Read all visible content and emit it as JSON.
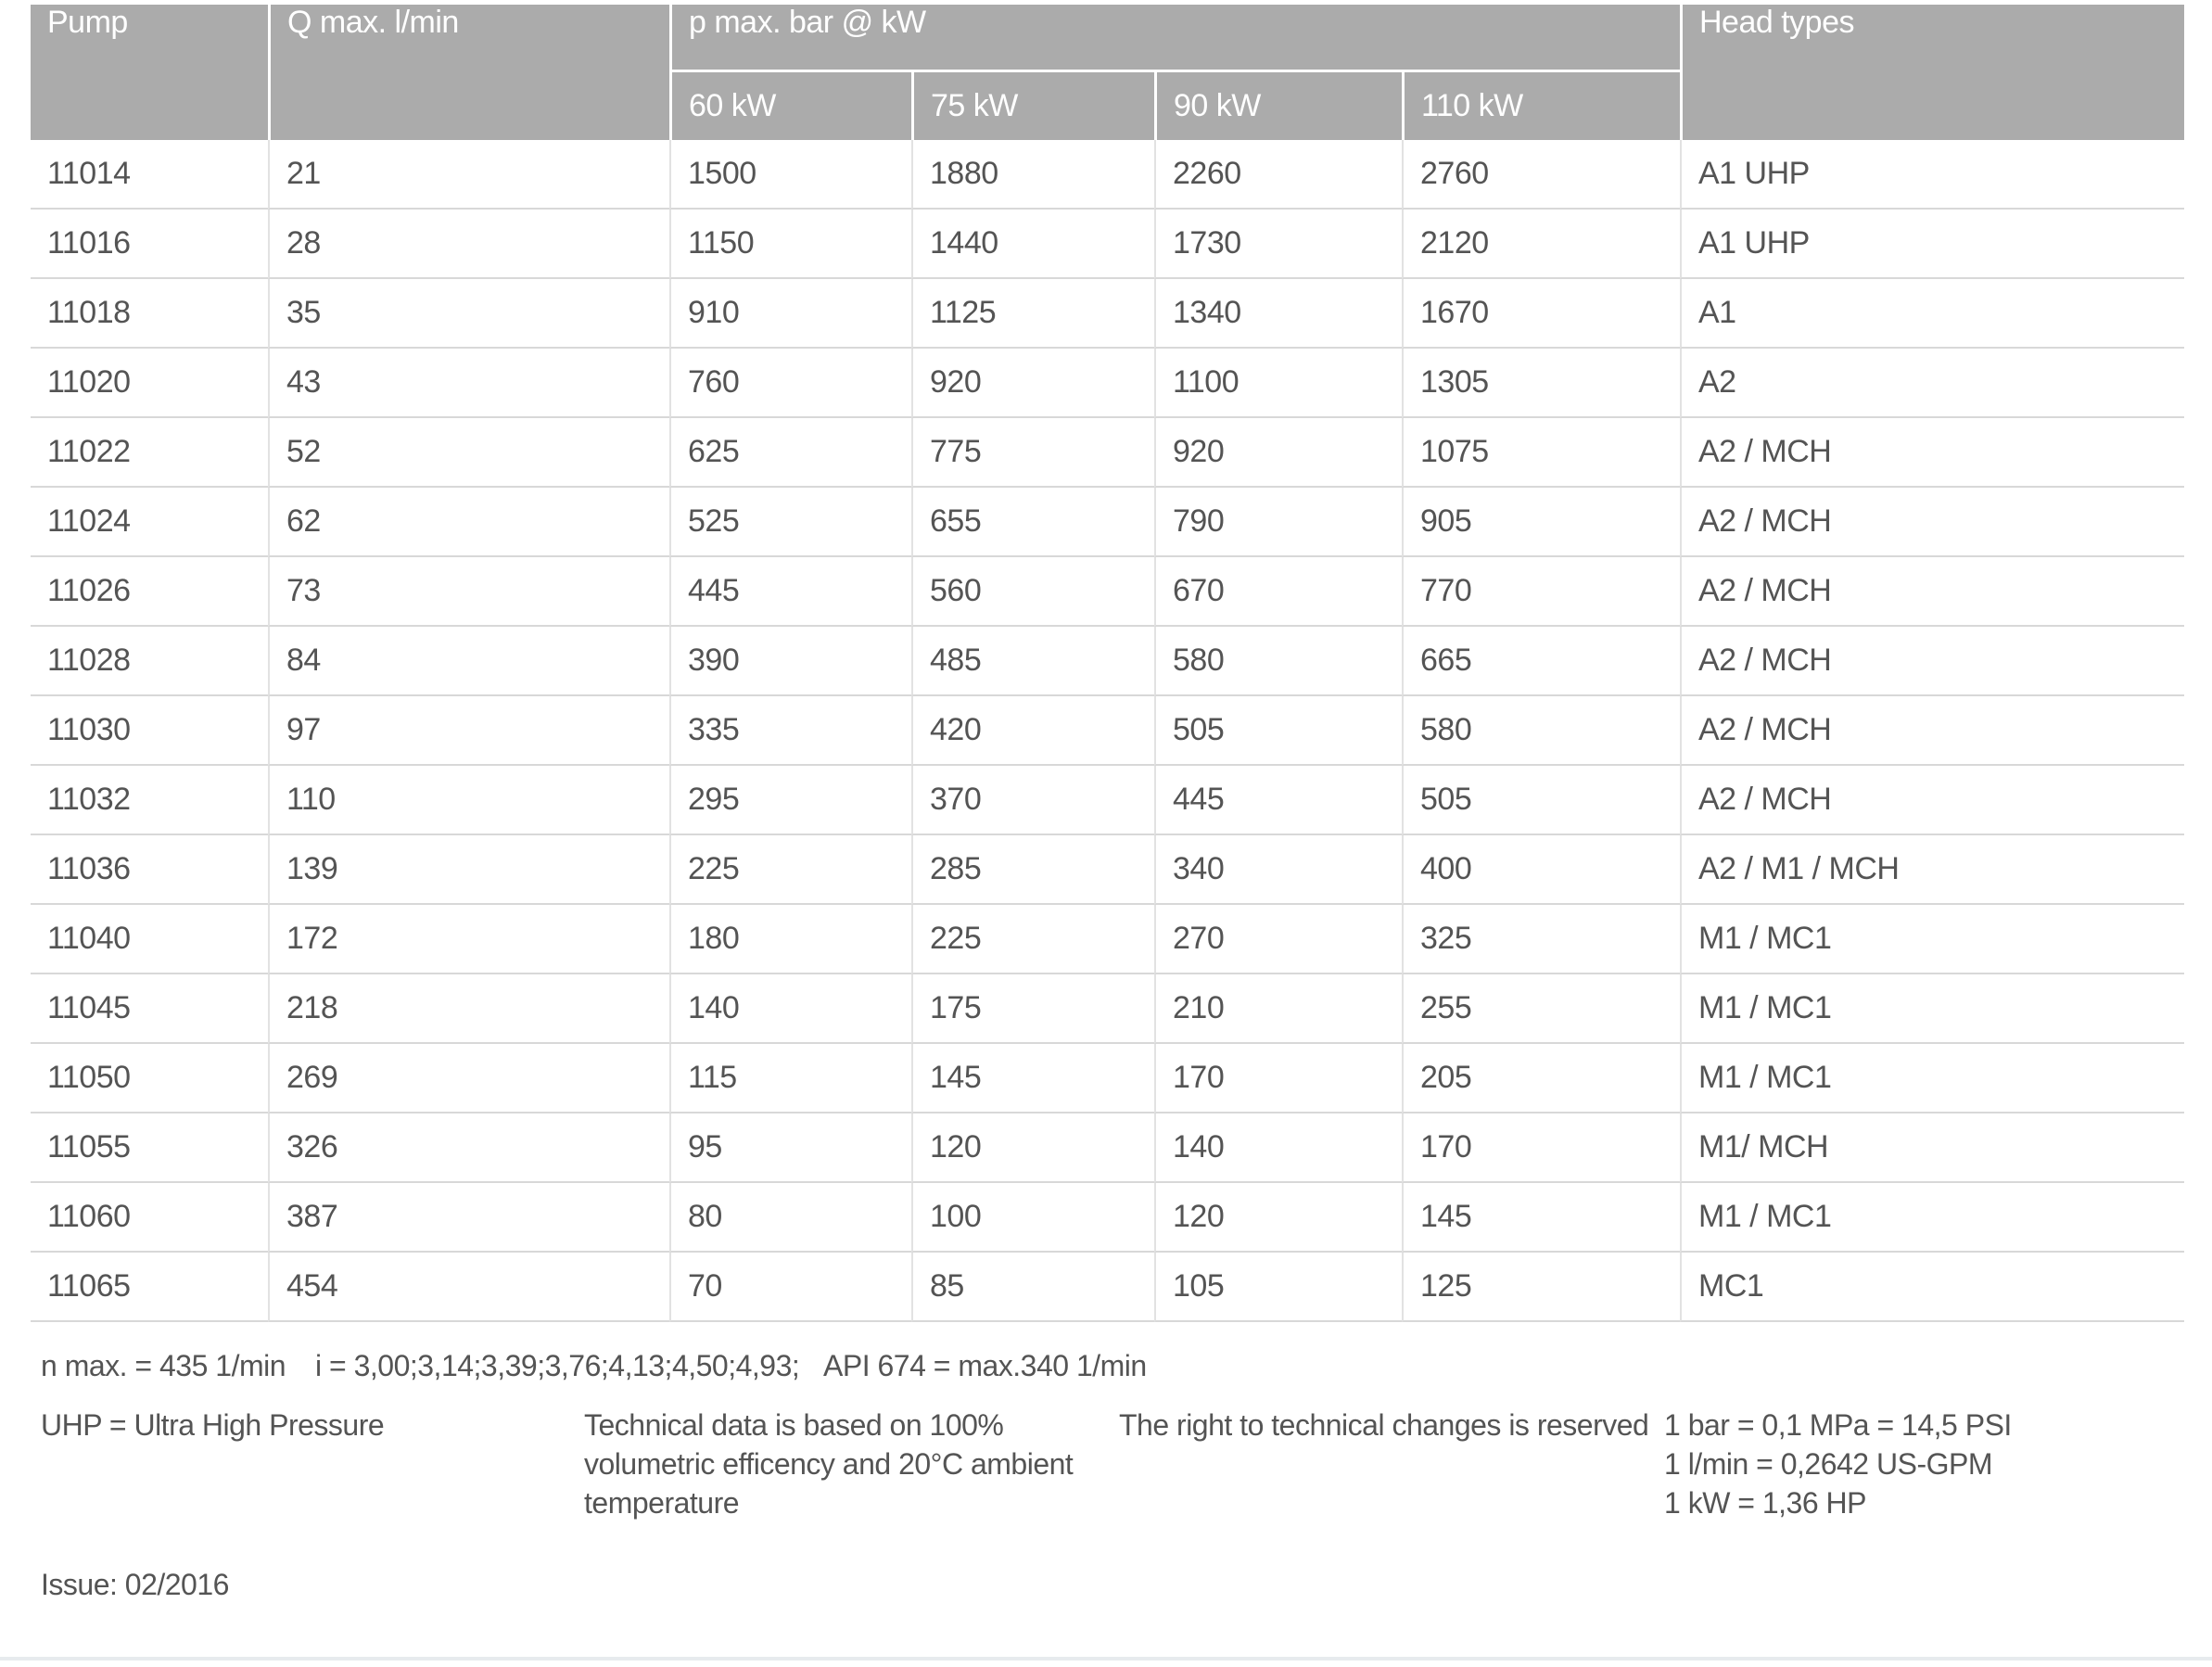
{
  "table": {
    "headers": {
      "pump": "Pump",
      "q_max": "Q max. l/min",
      "p_max_group": "p max. bar @ kW",
      "kw_columns": [
        "60 kW",
        "75 kW",
        "90 kW",
        "110 kW"
      ],
      "head_types": "Head types"
    },
    "rows": [
      [
        "11014",
        "21",
        "1500",
        "1880",
        "2260",
        "2760",
        "A1 UHP"
      ],
      [
        "11016",
        "28",
        "1150",
        "1440",
        "1730",
        "2120",
        "A1 UHP"
      ],
      [
        "11018",
        "35",
        "910",
        "1125",
        "1340",
        "1670",
        "A1"
      ],
      [
        "11020",
        "43",
        "760",
        "920",
        "1100",
        "1305",
        "A2"
      ],
      [
        "11022",
        "52",
        "625",
        "775",
        "920",
        "1075",
        "A2 / MCH"
      ],
      [
        "11024",
        "62",
        "525",
        "655",
        "790",
        "905",
        "A2 / MCH"
      ],
      [
        "11026",
        "73",
        "445",
        "560",
        "670",
        "770",
        "A2 / MCH"
      ],
      [
        "11028",
        "84",
        "390",
        "485",
        "580",
        "665",
        "A2 / MCH"
      ],
      [
        "11030",
        "97",
        "335",
        "420",
        "505",
        "580",
        "A2 / MCH"
      ],
      [
        "11032",
        "110",
        "295",
        "370",
        "445",
        "505",
        "A2 / MCH"
      ],
      [
        "11036",
        "139",
        "225",
        "285",
        "340",
        "400",
        "A2 / M1 / MCH"
      ],
      [
        "11040",
        "172",
        "180",
        "225",
        "270",
        "325",
        "M1 / MC1"
      ],
      [
        "11045",
        "218",
        "140",
        "175",
        "210",
        "255",
        "M1 / MC1"
      ],
      [
        "11050",
        "269",
        "115",
        "145",
        "170",
        "205",
        "M1 / MC1"
      ],
      [
        "11055",
        "326",
        "95",
        "120",
        "140",
        "170",
        "M1/ MCH"
      ],
      [
        "11060",
        "387",
        "80",
        "100",
        "120",
        "145",
        "M1 / MC1"
      ],
      [
        "11065",
        "454",
        "70",
        "85",
        "105",
        "125",
        "MC1"
      ]
    ]
  },
  "notes": {
    "n_max": "n max. = 435 1/min",
    "gear_ratios": "i = 3,00;3,14;3,39;3,76;4,13;4,50;4,93;",
    "api": "API 674 = max.340 1/min",
    "uhp": "UHP = Ultra High Pressure",
    "technical": "Technical data is based on 100%\nvolumetric efficency and 20°C ambient\ntemperature",
    "rights": "The right to technical changes is reserved",
    "conversions": [
      "1 bar = 0,1 MPa = 14,5 PSI",
      "1 l/min = 0,2642 US-GPM",
      "1 kW = 1,36 HP"
    ],
    "issue": "Issue: 02/2016"
  },
  "colors": {
    "header_bg": "#ababab",
    "header_text": "#ffffff",
    "body_text": "#545454",
    "row_divider": "#d8d8d8",
    "column_divider": "#e2e2e2",
    "page_rule": "#e7ebee"
  }
}
